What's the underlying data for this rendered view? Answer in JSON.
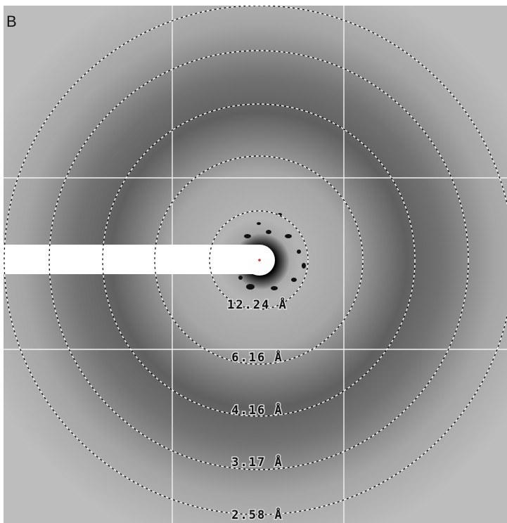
{
  "panel_label": "B",
  "rings": [
    {
      "label": "12.24 Å"
    },
    {
      "label": "6.16 Å"
    },
    {
      "label": "4.16 Å"
    },
    {
      "label": "3.17 Å"
    },
    {
      "label": "2.58 Å"
    }
  ]
}
